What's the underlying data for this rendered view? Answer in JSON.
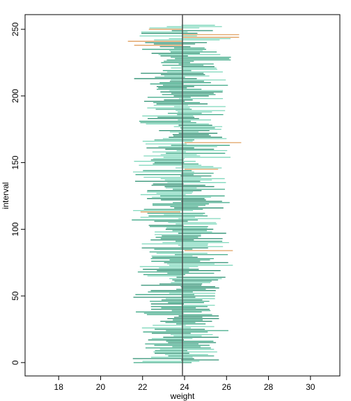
{
  "chart_data": {
    "type": "line",
    "title": "",
    "xlabel": "weight",
    "ylabel": "interval",
    "xlim": [
      16.4,
      31.4
    ],
    "ylim": [
      -10,
      261
    ],
    "xticks": [
      18,
      20,
      22,
      24,
      26,
      28,
      30
    ],
    "yticks": [
      0,
      50,
      100,
      150,
      200,
      250
    ],
    "reference_line": {
      "x": 23.9,
      "color": "#4d4d4d"
    },
    "grid": false,
    "legend": "none",
    "colors": {
      "covers": [
        "#7fd8bc",
        "#3da886",
        "#2b8f70"
      ],
      "misses": "#e0a060"
    },
    "intervals": {
      "count": 254,
      "misses": [
        {
          "y": 250,
          "lower": 22.3,
          "upper": 23.9
        },
        {
          "y": 246,
          "lower": 23.9,
          "upper": 26.6
        },
        {
          "y": 244,
          "lower": 23.9,
          "upper": 26.6
        },
        {
          "y": 241,
          "lower": 21.3,
          "upper": 23.9
        },
        {
          "y": 238,
          "lower": 21.6,
          "upper": 23.9
        },
        {
          "y": 165,
          "lower": 24.0,
          "upper": 26.7
        },
        {
          "y": 145,
          "lower": 24.0,
          "upper": 25.6
        },
        {
          "y": 113,
          "lower": 21.9,
          "upper": 23.8
        },
        {
          "y": 84,
          "lower": 24.0,
          "upper": 26.3
        }
      ]
    }
  }
}
